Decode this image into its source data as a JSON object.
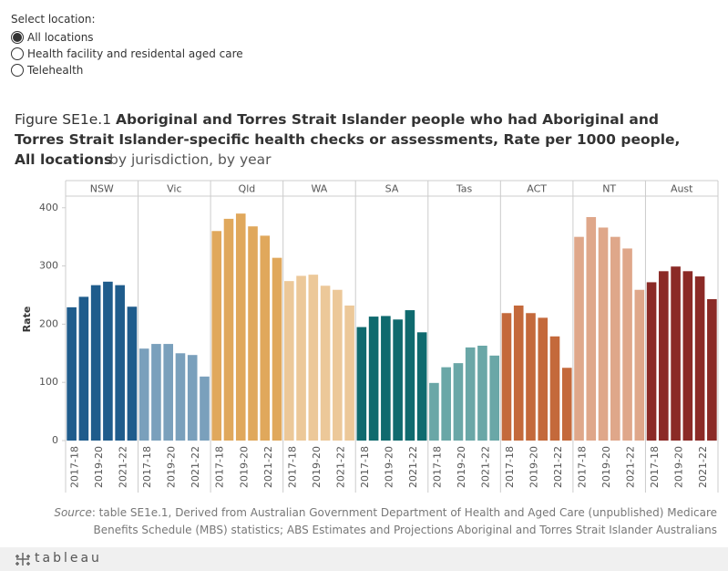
{
  "controls": {
    "label": "Select location:",
    "options": [
      "All locations",
      "Health facility and residental aged care",
      "Telehealth"
    ],
    "selected": 0
  },
  "chart_data": {
    "type": "bar",
    "title_prefix": "Figure SE1e.1",
    "title": "Aboriginal and Torres Strait Islander people who had Aboriginal and Torres Strait Islander-specific health checks or assessments, Rate per 1000 people, All locations",
    "subtitle": "by jurisdiction, by year",
    "y_label": "Rate",
    "categories": [
      "2017-18",
      null,
      "2019-20",
      null,
      "2021-22",
      null
    ],
    "ylim": [
      0,
      420
    ],
    "yticks": [
      0,
      100,
      200,
      300,
      400
    ],
    "grid": false,
    "series": [
      {
        "name": "NSW",
        "color": "#1f5c8c",
        "values": [
          229,
          247,
          267,
          273,
          267,
          230
        ]
      },
      {
        "name": "Vic",
        "color": "#7aa0bc",
        "values": [
          158,
          166,
          166,
          150,
          147,
          110
        ]
      },
      {
        "name": "Qld",
        "color": "#e0a85c",
        "values": [
          360,
          381,
          390,
          368,
          352,
          314
        ]
      },
      {
        "name": "WA",
        "color": "#ecc899",
        "values": [
          274,
          283,
          285,
          266,
          259,
          232
        ]
      },
      {
        "name": "SA",
        "color": "#0f6a6e",
        "values": [
          195,
          213,
          214,
          208,
          224,
          186
        ]
      },
      {
        "name": "Tas",
        "color": "#6aa7a7",
        "values": [
          99,
          126,
          133,
          160,
          163,
          146
        ]
      },
      {
        "name": "ACT",
        "color": "#c4693b",
        "values": [
          219,
          232,
          219,
          211,
          179,
          125
        ]
      },
      {
        "name": "NT",
        "color": "#dfa78a",
        "values": [
          350,
          384,
          366,
          350,
          330,
          259
        ]
      },
      {
        "name": "Aust",
        "color": "#8b2a26",
        "values": [
          272,
          291,
          299,
          291,
          282,
          243
        ]
      }
    ]
  },
  "source": {
    "label": "Source",
    "text": ": table SE1e.1, Derived from Australian Government Department of Health and Aged Care (unpublished) Medicare Benefits Schedule (MBS) statistics; ABS Estimates and Projections Aboriginal and Torres Strait Islander Australians"
  },
  "footer": {
    "brand": "tableau"
  }
}
